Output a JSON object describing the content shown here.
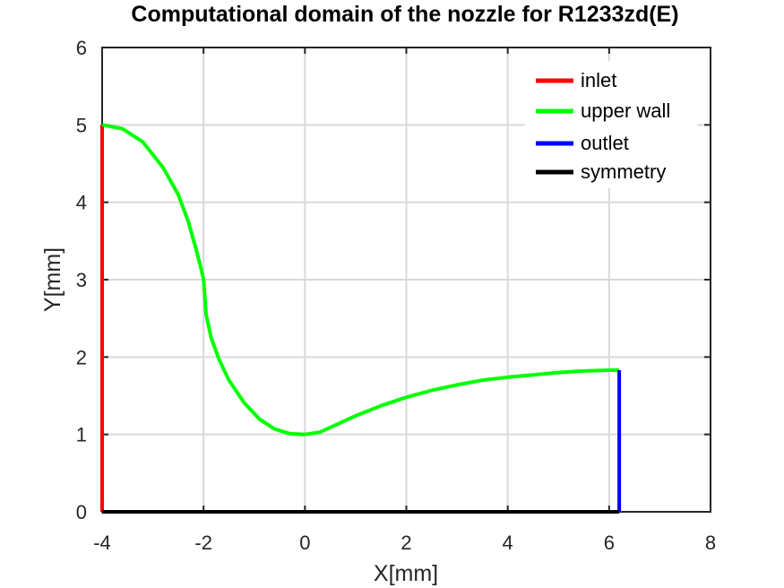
{
  "chart_data": {
    "type": "line",
    "title": "Computational domain of the nozzle for R1233zd(E)",
    "xlabel": "X[mm]",
    "ylabel": "Y[mm]",
    "xlim": [
      -4,
      8
    ],
    "ylim": [
      0,
      6
    ],
    "xticks": [
      "-4",
      "-2",
      "0",
      "2",
      "4",
      "6",
      "8"
    ],
    "yticks": [
      "0",
      "1",
      "2",
      "3",
      "4",
      "5",
      "6"
    ],
    "grid": true,
    "legend_position": "top-right",
    "series": [
      {
        "name": "inlet",
        "color": "#ff0000",
        "x": [
          -4,
          -4
        ],
        "y": [
          0,
          5
        ]
      },
      {
        "name": "upper wall",
        "color": "#00ff00",
        "x": [
          -4,
          -3.6,
          -3.2,
          -2.8,
          -2.5,
          -2.3,
          -2.15,
          -2.05,
          -2.0,
          -1.95,
          -1.85,
          -1.7,
          -1.5,
          -1.2,
          -0.9,
          -0.6,
          -0.3,
          0,
          0.3,
          0.6,
          1.0,
          1.5,
          2.0,
          2.5,
          3.0,
          3.5,
          4.0,
          4.5,
          5.0,
          5.5,
          6.0,
          6.2
        ],
        "y": [
          5.0,
          4.95,
          4.78,
          4.45,
          4.1,
          3.75,
          3.4,
          3.15,
          3.0,
          2.55,
          2.25,
          1.98,
          1.7,
          1.41,
          1.2,
          1.07,
          1.01,
          1.0,
          1.03,
          1.12,
          1.24,
          1.37,
          1.48,
          1.57,
          1.64,
          1.7,
          1.74,
          1.77,
          1.8,
          1.82,
          1.83,
          1.83
        ]
      },
      {
        "name": "outlet",
        "color": "#0000ff",
        "x": [
          6.2,
          6.2
        ],
        "y": [
          0,
          1.83
        ]
      },
      {
        "name": "symmetry",
        "color": "#000000",
        "x": [
          -4,
          6.2
        ],
        "y": [
          0,
          0
        ]
      }
    ]
  }
}
